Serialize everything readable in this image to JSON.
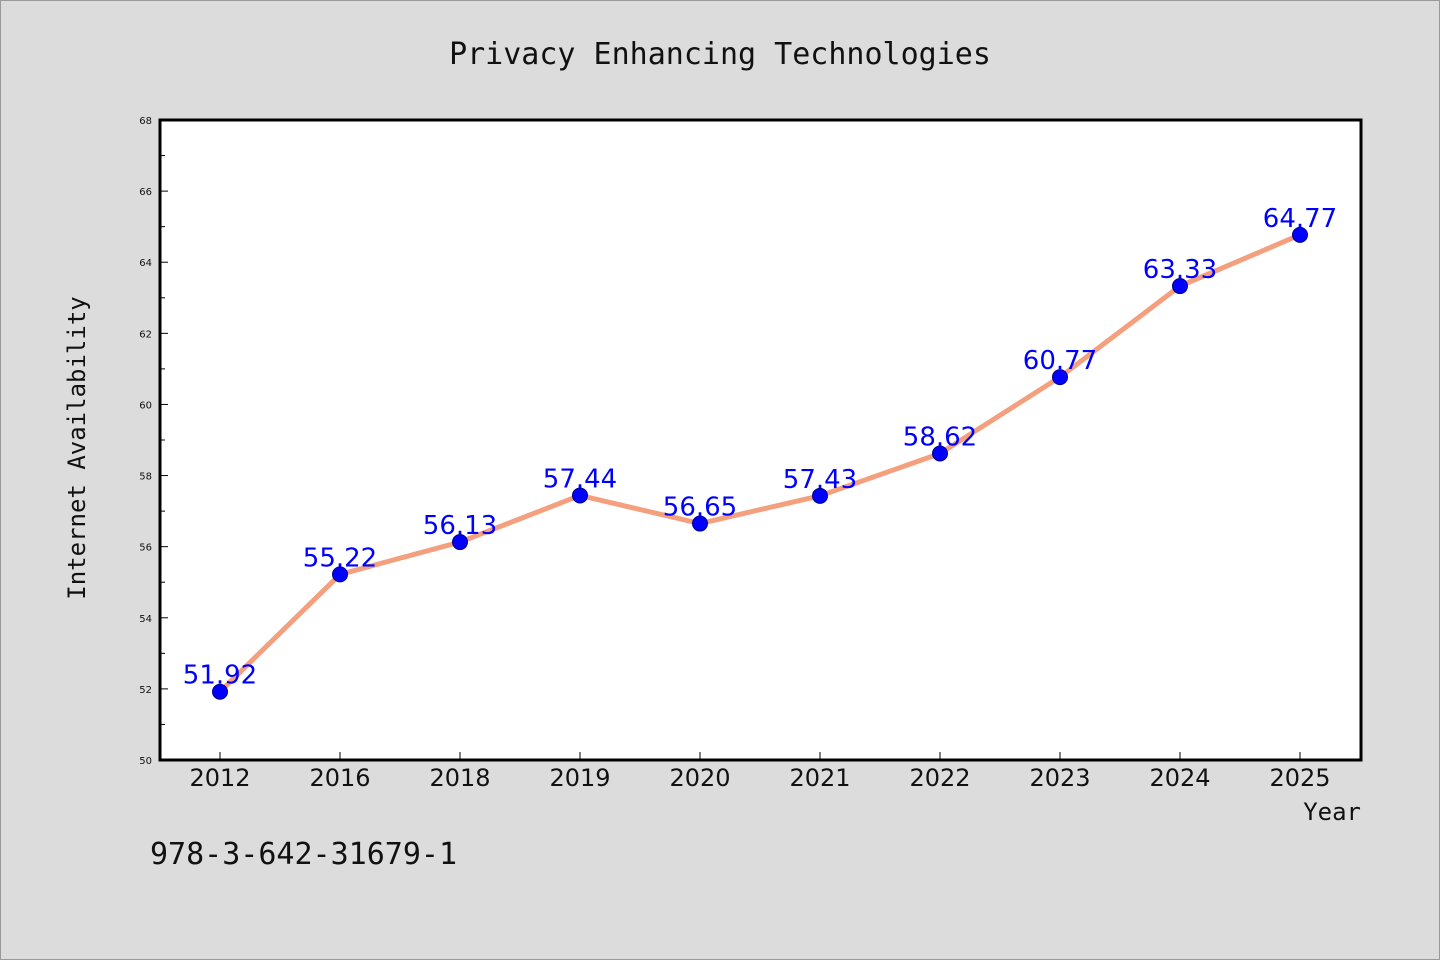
{
  "chart_data": {
    "type": "line",
    "title": "Privacy Enhancing Technologies",
    "xlabel": "Year",
    "ylabel": "Internet Availability",
    "categories": [
      "2012",
      "2016",
      "2018",
      "2019",
      "2020",
      "2021",
      "2022",
      "2023",
      "2024",
      "2025"
    ],
    "series": [
      {
        "values": [
          51.92,
          55.22,
          56.13,
          57.44,
          56.65,
          57.43,
          58.62,
          60.77,
          63.33,
          64.77
        ],
        "labels": [
          "51.92",
          "55.22",
          "56.13",
          "57.44",
          "56.65",
          "57.43",
          "58.62",
          "60.77",
          "63.33",
          "64.77"
        ]
      }
    ],
    "ylim": [
      50,
      68
    ],
    "yticks": [
      "50",
      "52",
      "54",
      "56",
      "58",
      "60",
      "62",
      "64",
      "66",
      "68"
    ],
    "grid": false,
    "colors": {
      "line": "#f4a07e",
      "marker": "#0000ff",
      "label": "#0000ff",
      "background": "#dcdcdc",
      "plot_bg": "#ffffff"
    }
  },
  "footer": {
    "isbn": "978-3-642-31679-1"
  }
}
